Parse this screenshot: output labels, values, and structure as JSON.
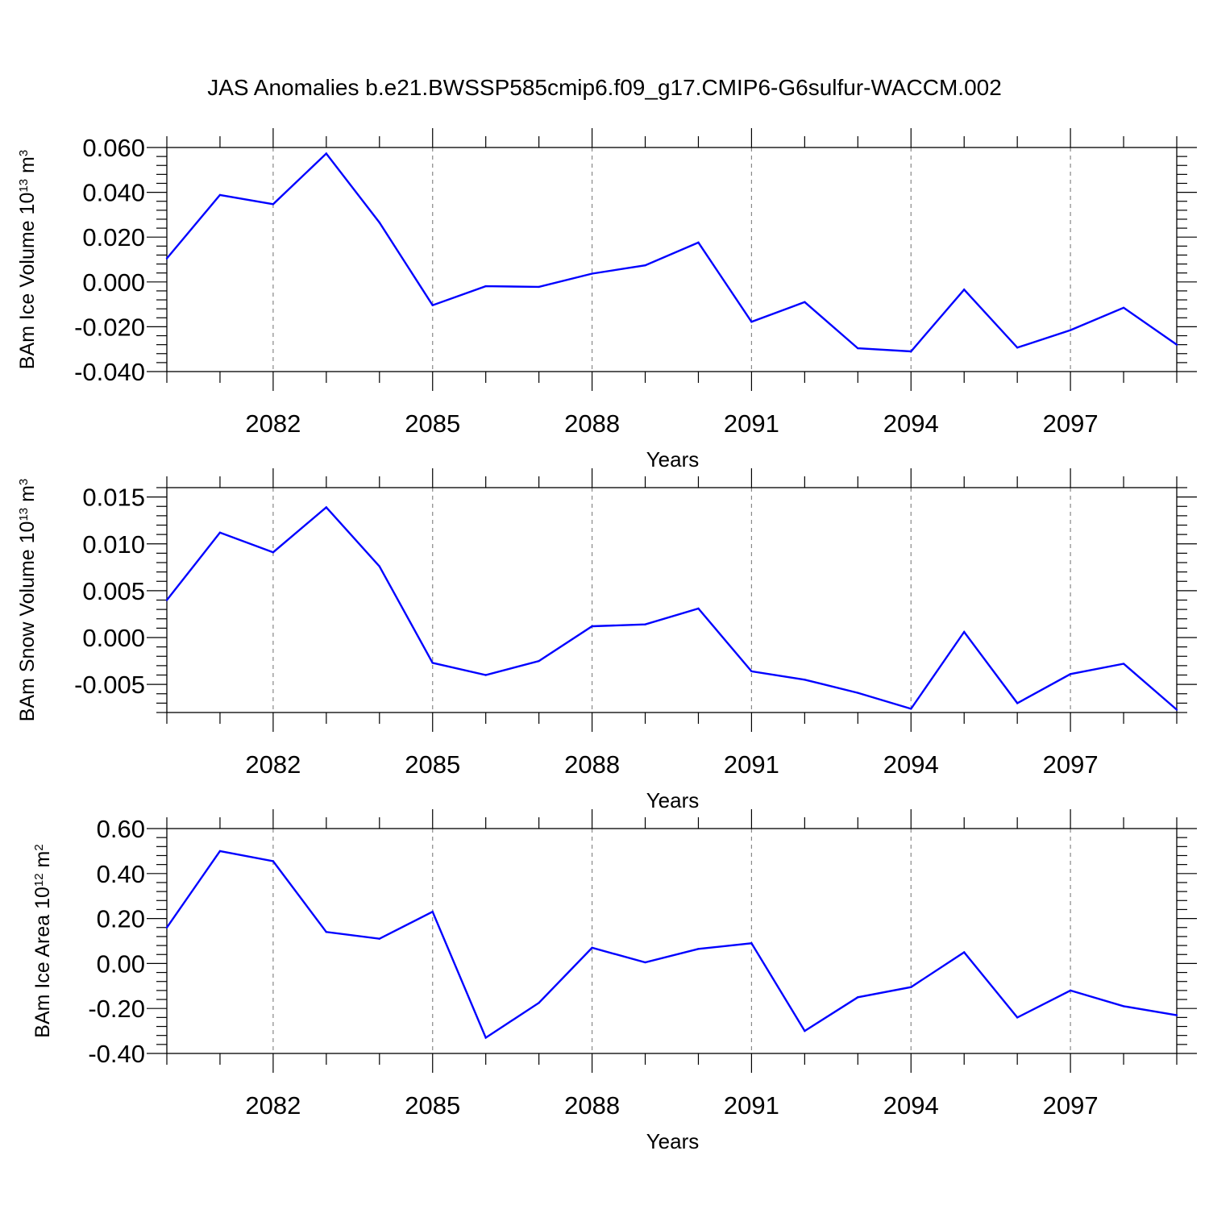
{
  "title": "JAS Anomalies b.e21.BWSSP585cmip6.f09_g17.CMIP6-G6sulfur-WACCM.002",
  "colors": {
    "series": "#0000ff",
    "axis": "#000000",
    "grid": "#888888"
  },
  "chart_data": [
    {
      "type": "line",
      "ylabel_prefix": "BAm Ice Volume 10",
      "ylabel_exp": "13",
      "ylabel_unit": " m",
      "ylabel_unit_exp": "3",
      "xlabel": "Years",
      "xlim": [
        2080,
        2099
      ],
      "ylim": [
        -0.04,
        0.06
      ],
      "yticks": [
        0.06,
        0.04,
        0.02,
        0.0,
        -0.02,
        -0.04
      ],
      "ytick_labels": [
        "0.060",
        "0.040",
        "0.020",
        "0.000",
        "-0.020",
        "-0.040"
      ],
      "xticks": [
        2082,
        2085,
        2088,
        2091,
        2094,
        2097
      ],
      "xtick_labels": [
        "2082",
        "2085",
        "2088",
        "2091",
        "2094",
        "2097"
      ],
      "grid": "vertical dashed at labeled years",
      "x": [
        2080,
        2081,
        2082,
        2083,
        2084,
        2085,
        2086,
        2087,
        2088,
        2089,
        2090,
        2091,
        2092,
        2093,
        2094,
        2095,
        2096,
        2097,
        2098,
        2099
      ],
      "values": [
        0.0105,
        0.0388,
        0.0347,
        0.0573,
        0.0265,
        -0.0104,
        -0.0019,
        -0.0022,
        0.0037,
        0.0074,
        0.0176,
        -0.0178,
        -0.009,
        -0.0296,
        -0.031,
        -0.0034,
        -0.0293,
        -0.0215,
        -0.0115,
        -0.028
      ]
    },
    {
      "type": "line",
      "ylabel_prefix": "BAm Snow Volume 10",
      "ylabel_exp": "13",
      "ylabel_unit": " m",
      "ylabel_unit_exp": "3",
      "xlabel": "Years",
      "xlim": [
        2080,
        2099
      ],
      "ylim": [
        -0.008,
        0.016
      ],
      "yticks": [
        0.015,
        0.01,
        0.005,
        0.0,
        -0.005
      ],
      "ytick_labels": [
        "0.015",
        "0.010",
        "0.005",
        "0.000",
        "-0.005"
      ],
      "xticks": [
        2082,
        2085,
        2088,
        2091,
        2094,
        2097
      ],
      "xtick_labels": [
        "2082",
        "2085",
        "2088",
        "2091",
        "2094",
        "2097"
      ],
      "grid": "vertical dashed at labeled years",
      "x": [
        2080,
        2081,
        2082,
        2083,
        2084,
        2085,
        2086,
        2087,
        2088,
        2089,
        2090,
        2091,
        2092,
        2093,
        2094,
        2095,
        2096,
        2097,
        2098,
        2099
      ],
      "values": [
        0.004,
        0.0112,
        0.0091,
        0.0139,
        0.0076,
        -0.0027,
        -0.004,
        -0.0025,
        0.0012,
        0.0014,
        0.0031,
        -0.0036,
        -0.0045,
        -0.0059,
        -0.0076,
        0.0006,
        -0.007,
        -0.0039,
        -0.0028,
        -0.0077
      ]
    },
    {
      "type": "line",
      "ylabel_prefix": "BAm Ice Area 10",
      "ylabel_exp": "12",
      "ylabel_unit": " m",
      "ylabel_unit_exp": "2",
      "xlabel": "Years",
      "xlim": [
        2080,
        2099
      ],
      "ylim": [
        -0.4,
        0.6
      ],
      "yticks": [
        0.6,
        0.4,
        0.2,
        0.0,
        -0.2,
        -0.4
      ],
      "ytick_labels": [
        "0.60",
        "0.40",
        "0.20",
        "0.00",
        "-0.20",
        "-0.40"
      ],
      "xticks": [
        2082,
        2085,
        2088,
        2091,
        2094,
        2097
      ],
      "xtick_labels": [
        "2082",
        "2085",
        "2088",
        "2091",
        "2094",
        "2097"
      ],
      "grid": "vertical dashed at labeled years",
      "x": [
        2080,
        2081,
        2082,
        2083,
        2084,
        2085,
        2086,
        2087,
        2088,
        2089,
        2090,
        2091,
        2092,
        2093,
        2094,
        2095,
        2096,
        2097,
        2098,
        2099
      ],
      "values": [
        0.16,
        0.5,
        0.455,
        0.14,
        0.11,
        0.23,
        -0.33,
        -0.175,
        0.07,
        0.005,
        0.065,
        0.09,
        -0.3,
        -0.15,
        -0.105,
        0.05,
        -0.24,
        -0.12,
        -0.19,
        -0.23
      ]
    }
  ]
}
